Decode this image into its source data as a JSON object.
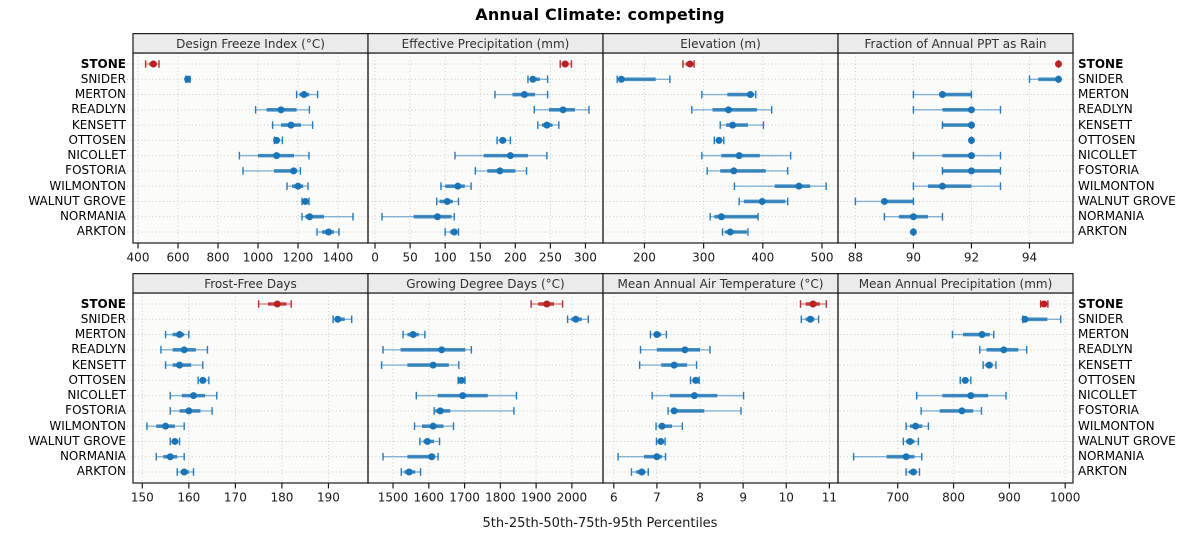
{
  "title": "Annual Climate: competing",
  "caption": "5th-25th-50th-75th-95th Percentiles",
  "chart_data": {
    "type": "dotplot",
    "layout": "trellis 2 rows x 4 cols, shared site axis",
    "percentiles": [
      5,
      25,
      50,
      75,
      95
    ],
    "sites": [
      "STONE",
      "SNIDER",
      "MERTON",
      "READLYN",
      "KENSETT",
      "OTTOSEN",
      "NICOLLET",
      "FOSTORIA",
      "WILMONTON",
      "WALNUT GROVE",
      "NORMANIA",
      "ARKTON"
    ],
    "highlight_site": "STONE",
    "legend_position": "none",
    "grid": "dotted",
    "colors": {
      "highlight": "#b92125",
      "normal": "#1b74b6",
      "strip_bg": "#ebebeb",
      "panel_bg": "#fbfbf9",
      "grid": "#c9c9c9",
      "border": "#1a1a1a"
    },
    "panels": [
      {
        "title": "Design Freeze Index (°C)",
        "row": 0,
        "xlim": [
          375,
          1550
        ],
        "ticks": [
          400,
          600,
          800,
          1000,
          1200,
          1400
        ],
        "data": [
          [
            438,
            457,
            477,
            493,
            505
          ],
          [
            640,
            644,
            648,
            654,
            660
          ],
          [
            1193,
            1207,
            1230,
            1256,
            1298
          ],
          [
            988,
            1043,
            1115,
            1193,
            1257
          ],
          [
            1073,
            1115,
            1165,
            1215,
            1273
          ],
          [
            1082,
            1086,
            1093,
            1106,
            1122
          ],
          [
            907,
            1000,
            1093,
            1180,
            1255
          ],
          [
            925,
            1080,
            1178,
            1196,
            1212
          ],
          [
            1145,
            1170,
            1200,
            1226,
            1250
          ],
          [
            1220,
            1227,
            1237,
            1247,
            1255
          ],
          [
            1220,
            1236,
            1258,
            1330,
            1475
          ],
          [
            1295,
            1320,
            1353,
            1380,
            1405
          ]
        ]
      },
      {
        "title": "Effective Precipitation (mm)",
        "row": 0,
        "xlim": [
          -10,
          325
        ],
        "ticks": [
          0,
          50,
          100,
          150,
          200,
          250,
          300
        ],
        "data": [
          [
            264,
            267,
            271,
            276,
            280
          ],
          [
            218,
            221,
            225,
            235,
            246
          ],
          [
            171,
            196,
            213,
            228,
            246
          ],
          [
            227,
            248,
            268,
            285,
            305
          ],
          [
            232,
            238,
            245,
            253,
            262
          ],
          [
            174,
            178,
            182,
            187,
            193
          ],
          [
            114,
            155,
            193,
            218,
            245
          ],
          [
            143,
            160,
            178,
            200,
            216
          ],
          [
            94,
            100,
            118,
            128,
            137
          ],
          [
            88,
            92,
            103,
            111,
            119
          ],
          [
            10,
            55,
            89,
            109,
            113
          ],
          [
            100,
            107,
            113,
            117,
            119
          ]
        ]
      },
      {
        "title": "Elevation (m)",
        "row": 0,
        "xlim": [
          130,
          527
        ],
        "ticks": [
          200,
          300,
          400,
          500
        ],
        "data": [
          [
            265,
            270,
            277,
            281,
            284
          ],
          [
            154,
            157,
            161,
            219,
            243
          ],
          [
            297,
            340,
            379,
            385,
            388
          ],
          [
            280,
            315,
            342,
            390,
            415
          ],
          [
            328,
            338,
            349,
            375,
            401
          ],
          [
            318,
            321,
            326,
            330,
            334
          ],
          [
            297,
            330,
            360,
            395,
            447
          ],
          [
            306,
            328,
            351,
            405,
            442
          ],
          [
            352,
            420,
            461,
            480,
            507
          ],
          [
            360,
            368,
            399,
            438,
            442
          ],
          [
            311,
            318,
            330,
            391,
            392
          ],
          [
            332,
            336,
            345,
            373,
            375
          ]
        ]
      },
      {
        "title": "Fraction of Annual PPT as Rain",
        "row": 0,
        "xlim": [
          87.4,
          95.5
        ],
        "ticks": [
          88,
          90,
          92,
          94
        ],
        "data": [
          [
            95,
            95,
            95,
            95,
            95
          ],
          [
            94,
            94.3,
            95,
            95,
            95
          ],
          [
            90,
            91,
            91,
            92,
            92
          ],
          [
            90,
            91,
            92,
            92,
            93
          ],
          [
            91,
            91,
            92,
            92,
            92
          ],
          [
            92,
            92,
            92,
            92,
            92
          ],
          [
            90,
            91,
            92,
            92,
            93
          ],
          [
            91,
            91,
            92,
            93,
            93
          ],
          [
            90,
            90.5,
            91,
            92,
            93
          ],
          [
            88,
            89,
            89,
            90,
            90
          ],
          [
            89,
            89.5,
            90,
            90.5,
            91
          ],
          [
            90,
            90,
            90,
            90,
            90
          ]
        ]
      },
      {
        "title": "Frost-Free Days",
        "row": 1,
        "xlim": [
          148,
          198.5
        ],
        "ticks": [
          150,
          160,
          170,
          180,
          190
        ],
        "data": [
          [
            175,
            177,
            179,
            181,
            182
          ],
          [
            191,
            191.5,
            192,
            193.5,
            195
          ],
          [
            155,
            156.5,
            158,
            159,
            160
          ],
          [
            154,
            156.5,
            159,
            161.5,
            164
          ],
          [
            155,
            156.5,
            158,
            160.5,
            163
          ],
          [
            162,
            162.5,
            163,
            163.7,
            164.3
          ],
          [
            156,
            158.5,
            161,
            163.5,
            166
          ],
          [
            156,
            158,
            160,
            162.5,
            165
          ],
          [
            151,
            153,
            155,
            157,
            159
          ],
          [
            156,
            156.5,
            157,
            157.5,
            158
          ],
          [
            153,
            154.5,
            156,
            157.5,
            159
          ],
          [
            157.5,
            158.2,
            159,
            160,
            161
          ]
        ]
      },
      {
        "title": "Growing Degree Days (°C)",
        "row": 1,
        "xlim": [
          1430,
          2087
        ],
        "ticks": [
          1500,
          1600,
          1700,
          1800,
          1900,
          2000
        ],
        "data": [
          [
            1886,
            1906,
            1930,
            1950,
            1974
          ],
          [
            1988,
            1998,
            2011,
            2028,
            2046
          ],
          [
            1528,
            1540,
            1556,
            1572,
            1589
          ],
          [
            1472,
            1521,
            1636,
            1702,
            1719
          ],
          [
            1468,
            1540,
            1612,
            1656,
            1684
          ],
          [
            1682,
            1685,
            1691,
            1696,
            1701
          ],
          [
            1565,
            1625,
            1695,
            1765,
            1845
          ],
          [
            1615,
            1618,
            1632,
            1660,
            1838
          ],
          [
            1560,
            1581,
            1612,
            1641,
            1669
          ],
          [
            1575,
            1585,
            1596,
            1615,
            1630
          ],
          [
            1472,
            1540,
            1608,
            1618,
            1626
          ],
          [
            1523,
            1532,
            1545,
            1562,
            1577
          ]
        ]
      },
      {
        "title": "Mean Annual Air Temperature (°C)",
        "row": 1,
        "xlim": [
          5.75,
          11.2
        ],
        "ticks": [
          6,
          7,
          8,
          9,
          10,
          11
        ],
        "data": [
          [
            10.33,
            10.45,
            10.62,
            10.78,
            10.93
          ],
          [
            10.35,
            10.45,
            10.56,
            10.65,
            10.75
          ],
          [
            6.85,
            6.92,
            7.0,
            7.1,
            7.22
          ],
          [
            6.62,
            7.0,
            7.65,
            8.0,
            8.23
          ],
          [
            6.6,
            7.1,
            7.4,
            7.7,
            7.92
          ],
          [
            7.78,
            7.83,
            7.9,
            7.94,
            7.98
          ],
          [
            6.89,
            7.3,
            7.87,
            8.4,
            9.01
          ],
          [
            7.26,
            7.33,
            7.4,
            8.1,
            8.95
          ],
          [
            6.98,
            7.04,
            7.12,
            7.35,
            7.59
          ],
          [
            6.99,
            7.03,
            7.09,
            7.14,
            7.19
          ],
          [
            6.1,
            6.7,
            7.0,
            7.12,
            7.2
          ],
          [
            6.41,
            6.52,
            6.65,
            6.73,
            6.8
          ]
        ]
      },
      {
        "title": "Mean Annual Precipitation (mm)",
        "row": 1,
        "xlim": [
          593,
          1014
        ],
        "ticks": [
          700,
          800,
          900,
          1000
        ],
        "data": [
          [
            956,
            959,
            962,
            966,
            969
          ],
          [
            924,
            926,
            928,
            968,
            992
          ],
          [
            798,
            817,
            851,
            865,
            872
          ],
          [
            847,
            859,
            890,
            916,
            931
          ],
          [
            853,
            857,
            864,
            870,
            876
          ],
          [
            812,
            816,
            821,
            826,
            831
          ],
          [
            734,
            780,
            831,
            862,
            894
          ],
          [
            742,
            775,
            815,
            835,
            850
          ],
          [
            715,
            722,
            732,
            744,
            755
          ],
          [
            710,
            715,
            722,
            730,
            737
          ],
          [
            621,
            680,
            715,
            730,
            743
          ],
          [
            715,
            720,
            728,
            734,
            739
          ]
        ]
      }
    ]
  }
}
